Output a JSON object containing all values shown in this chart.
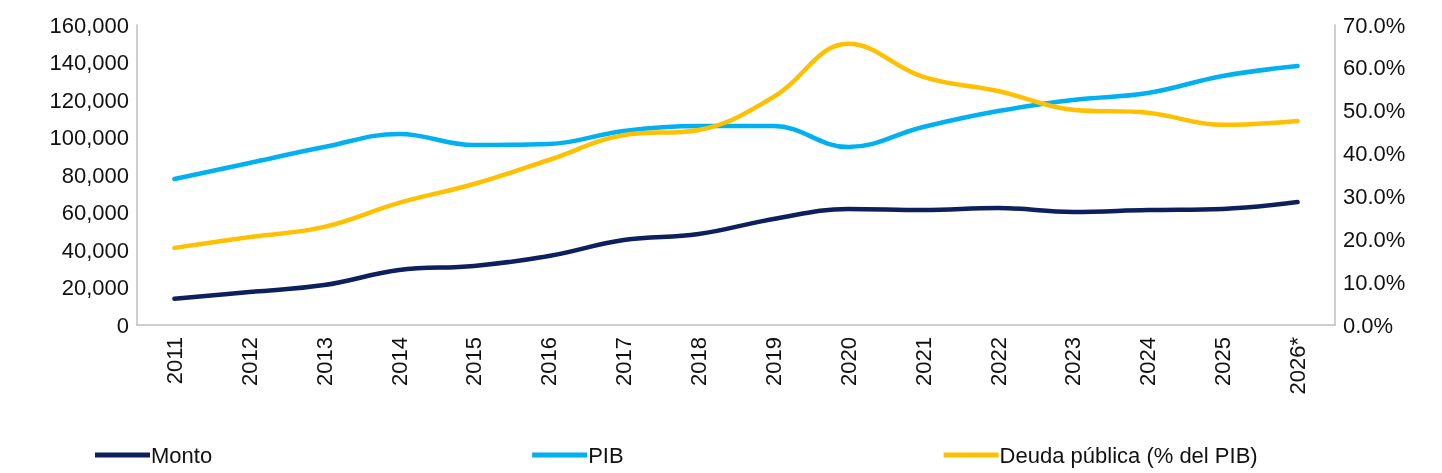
{
  "chart_data": {
    "type": "line",
    "categories": [
      "2011",
      "2012",
      "2013",
      "2014",
      "2015",
      "2016",
      "2017",
      "2018",
      "2019",
      "2020",
      "2021",
      "2022",
      "2023",
      "2024",
      "2025",
      "2026*"
    ],
    "series": [
      {
        "name": "Monto",
        "color": "#0d1f5c",
        "values": [
          14000,
          17600,
          21300,
          29300,
          31500,
          36800,
          45300,
          48500,
          56500,
          61900,
          61300,
          62400,
          60300,
          61300,
          61900,
          65600
        ]
      },
      {
        "name": "PIB",
        "color": "#00b0f0",
        "values": [
          77900,
          86400,
          94900,
          101900,
          96000,
          96500,
          103500,
          106100,
          106100,
          94900,
          105600,
          114100,
          120000,
          123700,
          132800,
          138100
        ]
      },
      {
        "name": "Deuda pública (% del PIB)",
        "color": "#ffc000",
        "axis": "y2",
        "values": [
          18.0,
          20.5,
          22.9,
          28.5,
          32.9,
          38.5,
          44.3,
          45.5,
          53.2,
          65.6,
          57.9,
          54.6,
          50.2,
          49.5,
          46.7,
          47.6
        ]
      }
    ],
    "ylim": [
      0,
      160000
    ],
    "yticks": [
      0,
      {
        "value": 20000,
        "label": "20,000"
      },
      {
        "value": 40000,
        "label": "40,000"
      },
      {
        "value": 60000,
        "label": "60,000"
      },
      {
        "value": 80000,
        "label": "80,000"
      },
      {
        "value": 100000,
        "label": "100,000"
      },
      {
        "value": 120000,
        "label": "120,000"
      },
      {
        "value": 140000,
        "label": "140,000"
      },
      {
        "value": 160000,
        "label": "160,000"
      }
    ],
    "y2lim": [
      0,
      70
    ],
    "y2ticks": [
      {
        "value": 0,
        "label": "0.0%"
      },
      {
        "value": 10,
        "label": "10.0%"
      },
      {
        "value": 20,
        "label": "20.0%"
      },
      {
        "value": 30,
        "label": "30.0%"
      },
      {
        "value": 40,
        "label": "40.0%"
      },
      {
        "value": 50,
        "label": "50.0%"
      },
      {
        "value": 60,
        "label": "60.0%"
      },
      {
        "value": 70,
        "label": "70.0%"
      }
    ],
    "grid": false,
    "legend": "bottom",
    "marker": "none",
    "line_style": "solid"
  }
}
